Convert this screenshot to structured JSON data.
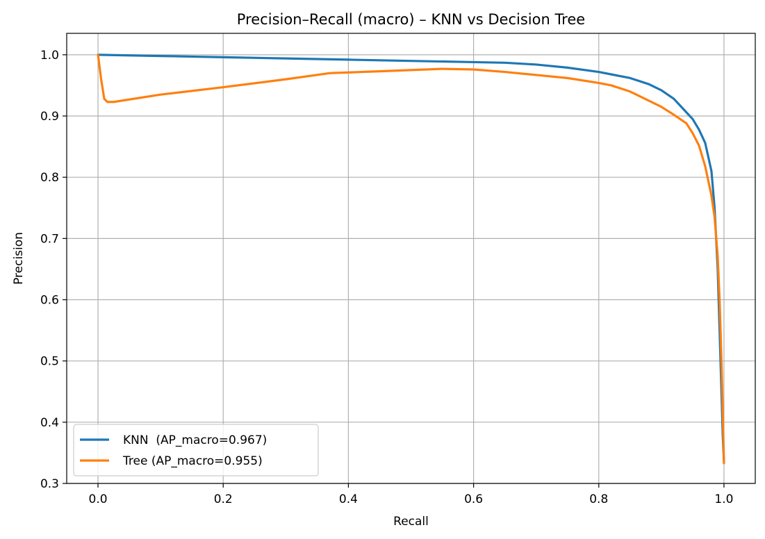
{
  "chart_data": {
    "type": "line",
    "title": "Precision–Recall (macro) – KNN vs Decision Tree",
    "xlabel": "Recall",
    "ylabel": "Precision",
    "xlim": [
      -0.05,
      1.05
    ],
    "ylim": [
      0.3,
      1.035
    ],
    "xticks": [
      0.0,
      0.2,
      0.4,
      0.6,
      0.8,
      1.0
    ],
    "xtick_labels": [
      "0.0",
      "0.2",
      "0.4",
      "0.6",
      "0.8",
      "1.0"
    ],
    "yticks": [
      0.3,
      0.4,
      0.5,
      0.6,
      0.7,
      0.8,
      0.9,
      1.0
    ],
    "ytick_labels": [
      "0.3",
      "0.4",
      "0.5",
      "0.6",
      "0.7",
      "0.8",
      "0.9",
      "1.0"
    ],
    "grid": true,
    "legend_position": "lower-left",
    "series": [
      {
        "name": "KNN  (AP_macro=0.967)",
        "color": "#1f77b4",
        "x": [
          0.0,
          0.1,
          0.2,
          0.3,
          0.4,
          0.5,
          0.6,
          0.65,
          0.7,
          0.75,
          0.8,
          0.85,
          0.88,
          0.9,
          0.92,
          0.94,
          0.95,
          0.96,
          0.97,
          0.98,
          0.985,
          0.99,
          0.993,
          0.996,
          0.998,
          1.0
        ],
        "y": [
          1.0,
          0.998,
          0.996,
          0.994,
          0.992,
          0.99,
          0.988,
          0.987,
          0.984,
          0.979,
          0.972,
          0.962,
          0.952,
          0.942,
          0.928,
          0.906,
          0.895,
          0.878,
          0.856,
          0.81,
          0.75,
          0.65,
          0.55,
          0.45,
          0.38,
          0.335
        ]
      },
      {
        "name": "Tree (AP_macro=0.955)",
        "color": "#ff7f0e",
        "x": [
          0.0,
          0.005,
          0.01,
          0.015,
          0.025,
          0.1,
          0.2,
          0.3,
          0.37,
          0.45,
          0.55,
          0.6,
          0.65,
          0.7,
          0.75,
          0.8,
          0.82,
          0.85,
          0.87,
          0.9,
          0.92,
          0.94,
          0.95,
          0.96,
          0.97,
          0.98,
          0.985,
          0.99,
          0.993,
          0.996,
          0.998,
          1.0
        ],
        "y": [
          1.0,
          0.96,
          0.928,
          0.923,
          0.923,
          0.935,
          0.947,
          0.96,
          0.97,
          0.973,
          0.977,
          0.976,
          0.972,
          0.967,
          0.962,
          0.954,
          0.95,
          0.94,
          0.93,
          0.915,
          0.902,
          0.888,
          0.872,
          0.852,
          0.818,
          0.77,
          0.735,
          0.67,
          0.6,
          0.5,
          0.42,
          0.333
        ]
      }
    ]
  }
}
